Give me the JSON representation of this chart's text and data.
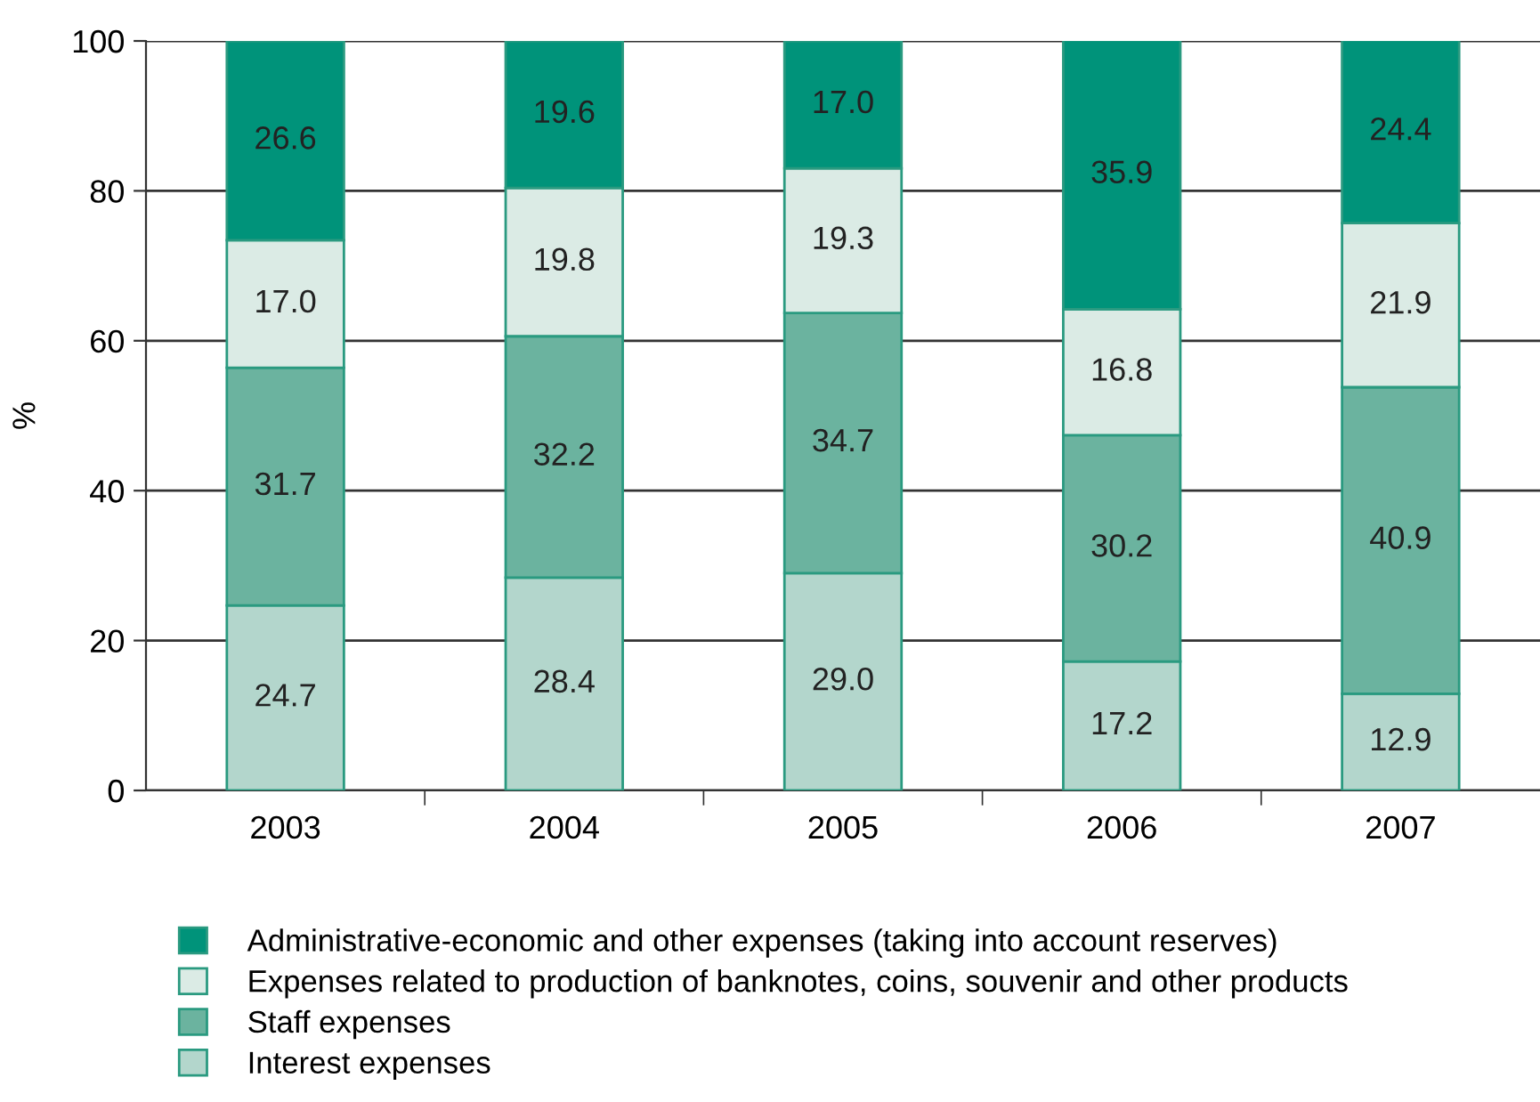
{
  "chart_data": {
    "type": "bar",
    "stacked": true,
    "ylabel": "%",
    "categories": [
      "2003",
      "2004",
      "2005",
      "2006",
      "2007"
    ],
    "series": [
      {
        "name": "Interest expenses",
        "color": "#b3d6cc",
        "values": [
          24.7,
          28.4,
          29.0,
          17.2,
          12.9
        ],
        "value_labels": [
          "24.7",
          "28.4",
          "29.0",
          "17.2",
          "12.9"
        ]
      },
      {
        "name": "Staff expenses",
        "color": "#6bb39f",
        "values": [
          31.7,
          32.2,
          34.7,
          30.2,
          40.9
        ],
        "value_labels": [
          "31.7",
          "32.2",
          "34.7",
          "30.2",
          "40.9"
        ]
      },
      {
        "name": "Expenses related to production of banknotes, coins, souvenir and other products",
        "color": "#dbebe5",
        "values": [
          17.0,
          19.8,
          19.3,
          16.8,
          21.9
        ],
        "value_labels": [
          "17.0",
          "19.8",
          "19.3",
          "16.8",
          "21.9"
        ]
      },
      {
        "name": "Administrative-economic and other expenses (taking into account reserves)",
        "color": "#00937a",
        "values": [
          26.6,
          19.6,
          17.0,
          35.9,
          24.4
        ],
        "value_labels": [
          "26.6",
          "19.6",
          "17.0",
          "35.9",
          "24.4"
        ]
      }
    ],
    "ylim": [
      0,
      100
    ],
    "yticks": [
      0,
      20,
      40,
      60,
      80,
      100
    ],
    "grid": "y",
    "legend": "bottom"
  }
}
